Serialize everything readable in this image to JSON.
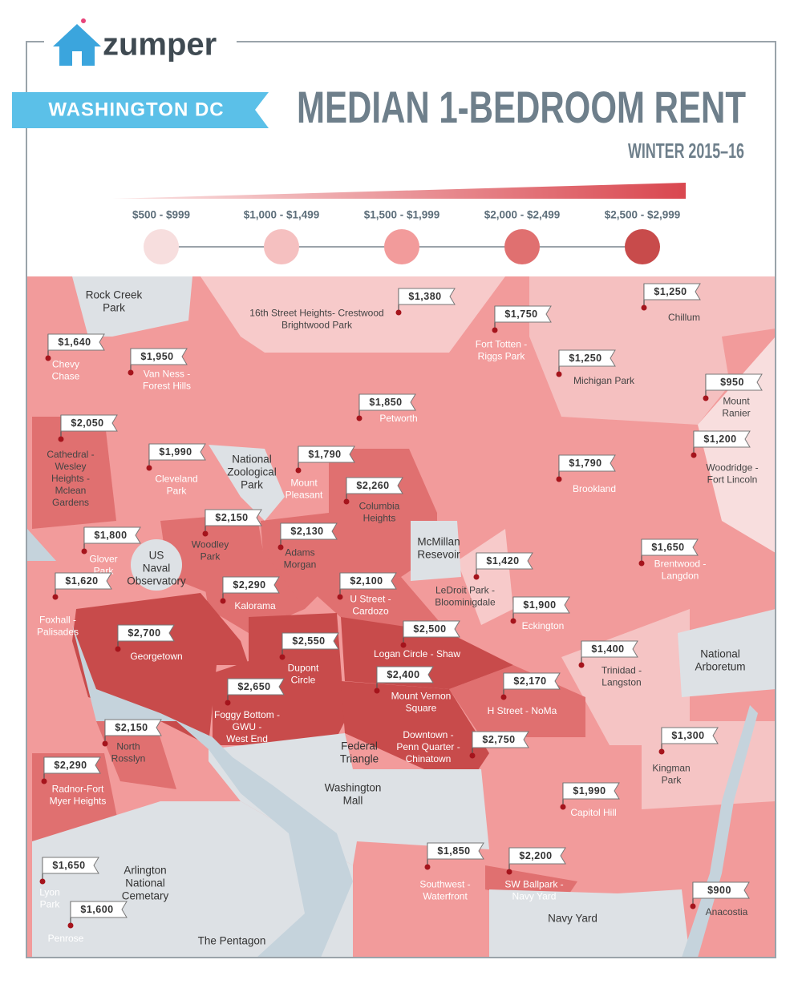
{
  "header": {
    "logo": "zumper",
    "city": "WASHINGTON DC",
    "title": "MEDIAN 1-BEDROOM RENT",
    "subtitle": "WINTER 2015–16"
  },
  "legend": [
    "$500 - $999",
    "$1,000 - $1,499",
    "$1,500 - $1,999",
    "$2,000 - $2,499",
    "$2,500 - $2,999"
  ],
  "neighborhoods": [
    {
      "name": [
        "Chevy",
        "Chase"
      ],
      "rent": "$1,640"
    },
    {
      "name": [
        "Van Ness -",
        "Forest Hills"
      ],
      "rent": "$1,950"
    },
    {
      "name": [
        "16th Street Heights- Crestwood",
        "Brightwood Park"
      ],
      "rent": "$1,380"
    },
    {
      "name": [
        "Fort Totten -",
        "Riggs Park"
      ],
      "rent": "$1,750"
    },
    {
      "name": [
        "Chillum"
      ],
      "rent": "$1,250"
    },
    {
      "name": [
        "Michigan  Park"
      ],
      "rent": "$1,250"
    },
    {
      "name": [
        "Mount",
        "Ranier"
      ],
      "rent": "$950"
    },
    {
      "name": [
        "Petworth"
      ],
      "rent": "$1,850"
    },
    {
      "name": [
        "Cathedral -",
        "Wesley",
        "Heights -",
        "Mclean",
        "Gardens"
      ],
      "rent": "$2,050"
    },
    {
      "name": [
        "Cleveland",
        "Park"
      ],
      "rent": "$1,990"
    },
    {
      "name": [
        "Mount",
        "Pleasant"
      ],
      "rent": "$1,790"
    },
    {
      "name": [
        "Columbia",
        "Heights"
      ],
      "rent": "$2,260"
    },
    {
      "name": [
        "Woodridge -",
        "Fort Lincoln"
      ],
      "rent": "$1,200"
    },
    {
      "name": [
        "Brookland"
      ],
      "rent": "$1,790"
    },
    {
      "name": [
        "Woodley",
        "Park"
      ],
      "rent": "$2,150"
    },
    {
      "name": [
        "Adams",
        "Morgan"
      ],
      "rent": "$2,130"
    },
    {
      "name": [
        "Glover",
        "Park"
      ],
      "rent": "$1,800"
    },
    {
      "name": [
        "Brentwood -",
        "Langdon"
      ],
      "rent": "$1,650"
    },
    {
      "name": [
        "LeDroit Park -",
        "Bloominigdale"
      ],
      "rent": "$1,420"
    },
    {
      "name": [
        "Foxhall -",
        "Palisades"
      ],
      "rent": "$1,620"
    },
    {
      "name": [
        "Kalorama"
      ],
      "rent": "$2,290"
    },
    {
      "name": [
        "U Street -",
        "Cardozo"
      ],
      "rent": "$2,100"
    },
    {
      "name": [
        "Eckington"
      ],
      "rent": "$1,900"
    },
    {
      "name": [
        "Georgetown"
      ],
      "rent": "$2,700"
    },
    {
      "name": [
        "Dupont",
        "Circle"
      ],
      "rent": "$2,550"
    },
    {
      "name": [
        "Logan Circle - Shaw"
      ],
      "rent": "$2,500"
    },
    {
      "name": [
        "Trinidad -",
        "Langston"
      ],
      "rent": "$1,400"
    },
    {
      "name": [
        "Foggy Bottom -",
        "GWU -",
        "West End"
      ],
      "rent": "$2,650"
    },
    {
      "name": [
        "Mount Vernon",
        "Square"
      ],
      "rent": "$2,400"
    },
    {
      "name": [
        "H Street - NoMa"
      ],
      "rent": "$2,170"
    },
    {
      "name": [
        "North",
        "Rosslyn"
      ],
      "rent": "$2,150"
    },
    {
      "name": [
        "Downtown -",
        "Penn Quarter -",
        "Chinatown"
      ],
      "rent": "$2,750"
    },
    {
      "name": [
        "Kingman",
        "Park"
      ],
      "rent": "$1,300"
    },
    {
      "name": [
        "Radnor-Fort",
        "Myer Heights"
      ],
      "rent": "$2,290"
    },
    {
      "name": [
        "Capitol Hill"
      ],
      "rent": "$1,990"
    },
    {
      "name": [
        "Southwest -",
        "Waterfront"
      ],
      "rent": "$1,850"
    },
    {
      "name": [
        "Lyon",
        "Park"
      ],
      "rent": "$1,650"
    },
    {
      "name": [
        "SW Ballpark -",
        "Navy Yard"
      ],
      "rent": "$2,200"
    },
    {
      "name": [
        "Anacostia"
      ],
      "rent": "$900"
    },
    {
      "name": [
        "Penrose"
      ],
      "rent": "$1,600"
    }
  ],
  "landmarks": [
    [
      "Rock Creek",
      "Park"
    ],
    [
      "National",
      "Zoological",
      "Park"
    ],
    [
      "US",
      "Naval",
      "Observatory"
    ],
    [
      "McMillan",
      "Resevoir"
    ],
    [
      "National",
      "Arboretum"
    ],
    [
      "Federal",
      "Triangle"
    ],
    [
      "Washington",
      "Mall"
    ],
    [
      "Arlington",
      "National",
      "Cemetary"
    ],
    [
      "The Pentagon"
    ],
    [
      "Navy Yard"
    ]
  ]
}
